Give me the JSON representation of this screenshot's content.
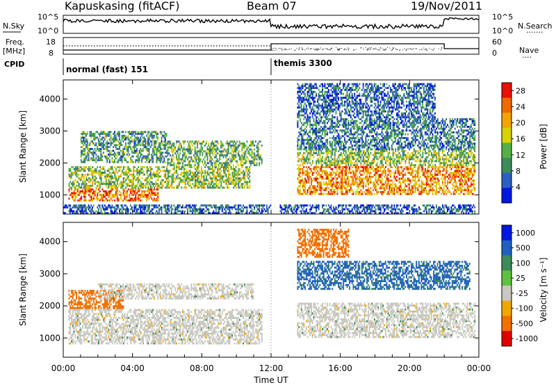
{
  "header": {
    "station": "Kapuskasing (fitACF)",
    "beam": "Beam 07",
    "date": "19/Nov/2011"
  },
  "strip_labels": {
    "nsky": "N.Sky",
    "nsearch": "N.Search",
    "nsearch_dots": "·······",
    "freq": "Freq.",
    "freq_unit": "[MHz]",
    "nave": "Nave",
    "nave_dots": "····",
    "cpid": "CPID",
    "ticks_noise_left": [
      "10^5",
      "10^0"
    ],
    "ticks_noise_right": [
      "10^5",
      "10^0"
    ],
    "ticks_freq": [
      "18",
      "8"
    ],
    "ticks_nave": [
      "60",
      "0"
    ]
  },
  "cpid_modes": [
    {
      "label": "normal (fast) 151",
      "start_hour": 0,
      "end_hour": 12
    },
    {
      "label": "themis 3300",
      "start_hour": 12,
      "end_hour": 24
    }
  ],
  "colors": {
    "power_scale": [
      "#0018e0",
      "#2f5fc0",
      "#3d8a5a",
      "#54b046",
      "#d7d200",
      "#f2a400",
      "#f06a00",
      "#e81000"
    ],
    "velocity_scale": [
      "#0018e0",
      "#2060c0",
      "#3d8a5a",
      "#60c040",
      "#c8c8c0",
      "#f0a800",
      "#f07000",
      "#e00000"
    ],
    "ground_scatter": "#c8c8c0"
  },
  "chart_data": [
    {
      "type": "heatmap",
      "panel": "power",
      "xlabel": "",
      "ylabel": "Slant Range [km]",
      "x_ticks": [
        "00:00",
        "04:00",
        "08:00",
        "12:00",
        "16:00",
        "20:00",
        "00:00"
      ],
      "xlim_hours": [
        0,
        24
      ],
      "ylim_km": [
        400,
        4600
      ],
      "y_ticks": [
        1000,
        2000,
        3000,
        4000
      ],
      "colorbar": {
        "label": "Power [dB]",
        "ticks": [
          4,
          8,
          12,
          16,
          20,
          24,
          28
        ],
        "range": [
          0,
          30
        ]
      },
      "regions": [
        {
          "t0": 0.3,
          "t1": 5.5,
          "r0": 800,
          "r1": 1200,
          "level": 24
        },
        {
          "t0": 0.3,
          "t1": 10.8,
          "r0": 1200,
          "r1": 1900,
          "level": 14
        },
        {
          "t0": 1.0,
          "t1": 6.0,
          "r0": 2000,
          "r1": 3000,
          "level": 10
        },
        {
          "t0": 6.0,
          "t1": 11.5,
          "r0": 1900,
          "r1": 2700,
          "level": 12
        },
        {
          "t0": 0.0,
          "t1": 12.0,
          "r0": 400,
          "r1": 700,
          "level": 6
        },
        {
          "t0": 13.5,
          "t1": 23.8,
          "r0": 1000,
          "r1": 1900,
          "level": 22
        },
        {
          "t0": 13.5,
          "t1": 23.8,
          "r0": 1900,
          "r1": 2400,
          "level": 14
        },
        {
          "t0": 13.5,
          "t1": 23.8,
          "r0": 2400,
          "r1": 3400,
          "level": 8
        },
        {
          "t0": 13.5,
          "t1": 21.5,
          "r0": 3400,
          "r1": 4500,
          "level": 6
        },
        {
          "t0": 12.5,
          "t1": 23.8,
          "r0": 400,
          "r1": 700,
          "level": 5
        }
      ]
    },
    {
      "type": "heatmap",
      "panel": "velocity",
      "xlabel": "Time UT",
      "ylabel": "Slant Range [km]",
      "x_ticks": [
        "00:00",
        "04:00",
        "08:00",
        "12:00",
        "16:00",
        "20:00",
        "00:00"
      ],
      "xlim_hours": [
        0,
        24
      ],
      "ylim_km": [
        400,
        4600
      ],
      "y_ticks": [
        1000,
        2000,
        3000,
        4000
      ],
      "colorbar": {
        "label": "Velocity [m s⁻¹]",
        "ticks": [
          1000,
          500,
          100,
          25,
          -25,
          -100,
          -500,
          -1000
        ]
      },
      "regions": [
        {
          "t0": 0.3,
          "t1": 3.5,
          "r0": 1900,
          "r1": 2500,
          "level": -300
        },
        {
          "t0": 0.3,
          "t1": 11.5,
          "r0": 800,
          "r1": 1900,
          "level": 0
        },
        {
          "t0": 2.0,
          "t1": 11.0,
          "r0": 2200,
          "r1": 2700,
          "level": 0
        },
        {
          "t0": 13.5,
          "t1": 23.8,
          "r0": 1000,
          "r1": 2100,
          "level": 0
        },
        {
          "t0": 13.5,
          "t1": 23.5,
          "r0": 2500,
          "r1": 3400,
          "level": 150
        },
        {
          "t0": 13.5,
          "t1": 16.5,
          "r0": 3500,
          "r1": 4400,
          "level": -300
        }
      ]
    }
  ]
}
